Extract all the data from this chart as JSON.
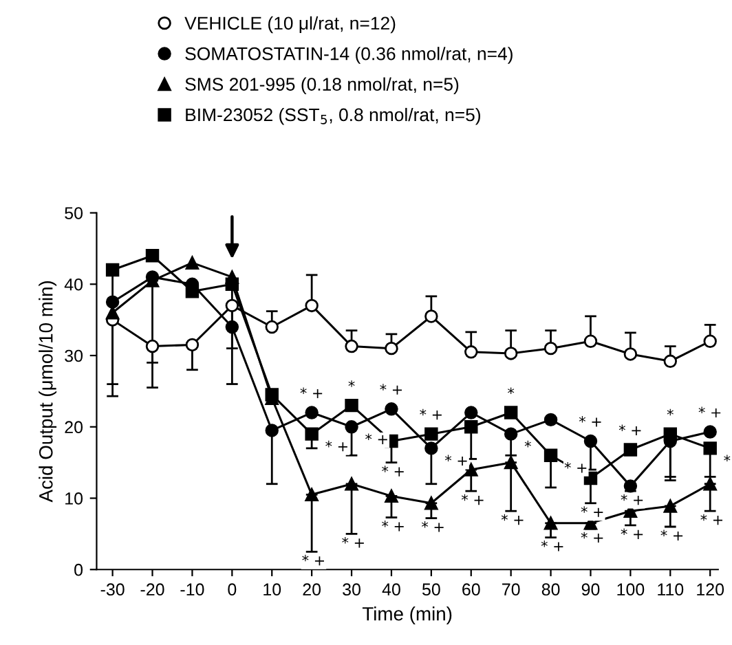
{
  "chart_data": {
    "type": "line",
    "xlabel": "Time (min)",
    "ylabel": "Acid Output (μmol/10 min)",
    "x": [
      -30,
      -20,
      -10,
      0,
      10,
      20,
      30,
      40,
      50,
      60,
      70,
      80,
      90,
      100,
      110,
      120
    ],
    "series": [
      {
        "name": "VEHICLE (10 μl/rat, n=12)",
        "color": "#ffffff",
        "marker": "circle",
        "values": [
          35,
          31.3,
          31.5,
          37,
          34,
          37,
          31.3,
          31,
          35.5,
          30.5,
          30.3,
          31,
          32,
          30.2,
          29.2,
          32
        ],
        "errors": [
          [
            24.3,
            35
          ],
          [
            25.5,
            31.3
          ],
          [
            28,
            31.5
          ],
          [
            31,
            37
          ],
          [
            34,
            36.2
          ],
          [
            37,
            41.3
          ],
          [
            31.3,
            33.5
          ],
          [
            31,
            33
          ],
          [
            35.5,
            38.3
          ],
          [
            30.5,
            33.3
          ],
          [
            30.3,
            33.5
          ],
          [
            31,
            33.5
          ],
          [
            32,
            35.5
          ],
          [
            30.2,
            33.2
          ],
          [
            29.2,
            31.3
          ],
          [
            32,
            34.3
          ]
        ]
      },
      {
        "name": "SOMATOSTATIN-14 (0.36 nmol/rat, n=4)",
        "color": "#000000",
        "marker": "circle",
        "values": [
          37.5,
          41,
          40,
          34,
          19.5,
          22,
          20,
          22.5,
          17,
          22,
          19,
          21,
          18,
          11.7,
          18,
          19.3
        ],
        "errors": [
          null,
          null,
          null,
          null,
          [
            12,
            19.5
          ],
          null,
          [
            16,
            20
          ],
          null,
          [
            12,
            17
          ],
          null,
          [
            16,
            19
          ],
          null,
          [
            14,
            18
          ],
          [
            11,
            11.7
          ],
          [
            12.5,
            18
          ],
          null
        ]
      },
      {
        "name": "SMS 201-995 (0.18 nmol/rat, n=5)",
        "color": "#000000",
        "marker": "triangle",
        "values": [
          36,
          40.5,
          43,
          41,
          24,
          10.5,
          12,
          10.3,
          9.3,
          14,
          15,
          6.5,
          6.5,
          8.2,
          8.9,
          12
        ],
        "errors": [
          null,
          [
            29,
            40.5
          ],
          null,
          null,
          null,
          [
            2.5,
            10.5
          ],
          [
            5,
            12
          ],
          [
            7.3,
            10.3
          ],
          [
            7.2,
            9.3
          ],
          [
            11,
            14
          ],
          [
            8.2,
            15
          ],
          [
            4.5,
            6.5
          ],
          [
            5.7,
            6.5
          ],
          [
            6.2,
            8.2
          ],
          [
            6,
            8.9
          ],
          [
            8.2,
            12
          ]
        ]
      },
      {
        "name": "BIM-23052 (SST$_{5}$, 0.8 nmol/rat, n=5)",
        "color": "#000000",
        "marker": "square",
        "values": [
          42,
          44,
          39,
          40,
          24.5,
          19,
          23,
          18,
          19,
          20,
          22,
          16,
          12.8,
          16.8,
          19,
          17
        ],
        "errors": [
          [
            26,
            42
          ],
          null,
          null,
          [
            26,
            40
          ],
          null,
          [
            17,
            19
          ],
          null,
          [
            15,
            18
          ],
          null,
          [
            15.5,
            20
          ],
          null,
          [
            11.5,
            16
          ],
          [
            9.3,
            12.8
          ],
          null,
          [
            13,
            19
          ],
          [
            13,
            17
          ]
        ]
      }
    ],
    "xlim": [
      -34,
      122
    ],
    "xticks": [
      -30,
      -20,
      -10,
      0,
      10,
      20,
      30,
      40,
      50,
      60,
      70,
      80,
      90,
      100,
      110,
      120
    ],
    "ylim": [
      0,
      50
    ],
    "yticks": [
      0,
      10,
      20,
      30,
      40,
      50
    ],
    "grid": false,
    "legend": "top",
    "line_style": "solid",
    "annotations": [
      {
        "text": "* +",
        "x": 20,
        "y": 22
      },
      {
        "text": "*",
        "x": 30,
        "y": 23
      },
      {
        "text": "* +",
        "x": 40,
        "y": 22.5
      },
      {
        "text": "* +",
        "x": 50,
        "y": 19
      },
      {
        "text": "*",
        "x": 70,
        "y": 22
      },
      {
        "text": "* +",
        "x": 90,
        "y": 18
      },
      {
        "text": "* +",
        "x": 100,
        "y": 16.8
      },
      {
        "text": "*",
        "x": 110,
        "y": 19
      },
      {
        "text": "* +",
        "x": 120,
        "y": 19.3
      },
      {
        "text": "* +",
        "x": 20,
        "y": 19
      },
      {
        "text": "* +",
        "x": 30,
        "y": 20
      },
      {
        "text": "* +",
        "x": 50,
        "y": 17
      },
      {
        "text": "*",
        "x": 70,
        "y": 19
      },
      {
        "text": "* +",
        "x": 80,
        "y": 16
      },
      {
        "text": "*",
        "x": 120,
        "y": 17
      },
      {
        "text": "* +",
        "x": 40,
        "y": 15
      },
      {
        "text": "* +",
        "x": 90,
        "y": 9.3
      },
      {
        "text": "* +",
        "x": 100,
        "y": 11
      },
      {
        "text": "* +",
        "x": 60,
        "y": 11
      },
      {
        "text": "* +",
        "x": 20,
        "y": 2.5
      },
      {
        "text": "* +",
        "x": 30,
        "y": 5
      },
      {
        "text": "* +",
        "x": 40,
        "y": 7.3
      },
      {
        "text": "* +",
        "x": 50,
        "y": 7.2
      },
      {
        "text": "* +",
        "x": 70,
        "y": 8.2
      },
      {
        "text": "* +",
        "x": 80,
        "y": 4.5
      },
      {
        "text": "* +",
        "x": 90,
        "y": 5.7
      },
      {
        "text": "* +",
        "x": 100,
        "y": 6.2
      },
      {
        "text": "* +",
        "x": 110,
        "y": 6
      },
      {
        "text": "* +",
        "x": 120,
        "y": 8.2
      }
    ]
  }
}
